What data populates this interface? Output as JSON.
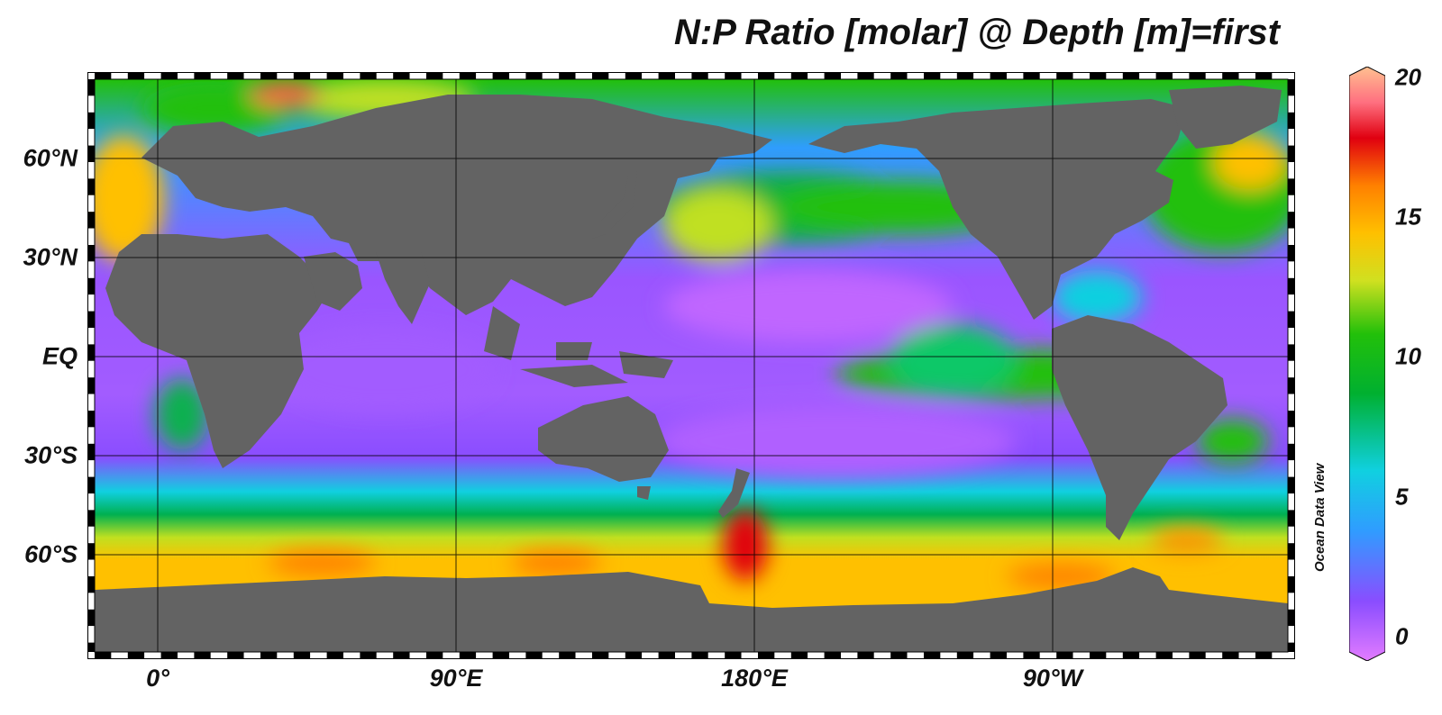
{
  "title": "N:P Ratio [molar] @ Depth [m]=first",
  "watermark": "Ocean Data View",
  "lat_labels": [
    "60°N",
    "30°N",
    "EQ",
    "30°S",
    "60°S"
  ],
  "lon_labels": [
    "0°",
    "90°E",
    "180°E",
    "90°W"
  ],
  "colorbar": {
    "ticks": [
      "20",
      "15",
      "10",
      "5",
      "0"
    ],
    "colors": [
      "#d660ff",
      "#8a4dff",
      "#2f9dff",
      "#10d0e0",
      "#00b050",
      "#22c00a",
      "#d0e020",
      "#ffc000",
      "#ff8000",
      "#e00010",
      "#ffb0a0"
    ]
  },
  "colors": {
    "land": "#636363",
    "grid": "#000000",
    "frame_black": "#000000",
    "frame_white": "#ffffff"
  }
}
